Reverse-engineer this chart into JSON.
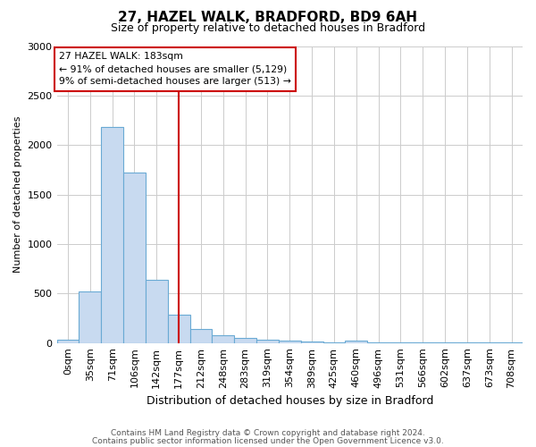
{
  "title1": "27, HAZEL WALK, BRADFORD, BD9 6AH",
  "title2": "Size of property relative to detached houses in Bradford",
  "xlabel": "Distribution of detached houses by size in Bradford",
  "ylabel": "Number of detached properties",
  "footnote1": "Contains HM Land Registry data © Crown copyright and database right 2024.",
  "footnote2": "Contains public sector information licensed under the Open Government Licence v3.0.",
  "bin_labels": [
    "0sqm",
    "35sqm",
    "71sqm",
    "106sqm",
    "142sqm",
    "177sqm",
    "212sqm",
    "248sqm",
    "283sqm",
    "319sqm",
    "354sqm",
    "389sqm",
    "425sqm",
    "460sqm",
    "496sqm",
    "531sqm",
    "566sqm",
    "602sqm",
    "637sqm",
    "673sqm",
    "708sqm"
  ],
  "bar_heights": [
    30,
    520,
    2180,
    1720,
    640,
    290,
    145,
    80,
    50,
    30,
    20,
    15,
    10,
    25,
    5,
    5,
    5,
    5,
    5,
    5,
    5
  ],
  "bar_color": "#c8daf0",
  "bar_edge_color": "#6aaad4",
  "property_bin_index": 5,
  "property_line_color": "#cc0000",
  "annotation_line1": "27 HAZEL WALK: 183sqm",
  "annotation_line2": "← 91% of detached houses are smaller (5,129)",
  "annotation_line3": "9% of semi-detached houses are larger (513) →",
  "annotation_box_color": "#cc0000",
  "ylim": [
    0,
    3000
  ],
  "yticks": [
    0,
    500,
    1000,
    1500,
    2000,
    2500,
    3000
  ],
  "background_color": "#ffffff",
  "grid_color": "#cccccc",
  "title1_fontsize": 11,
  "title2_fontsize": 9,
  "xlabel_fontsize": 9,
  "ylabel_fontsize": 8,
  "tick_fontsize": 8,
  "footnote_fontsize": 6.5
}
